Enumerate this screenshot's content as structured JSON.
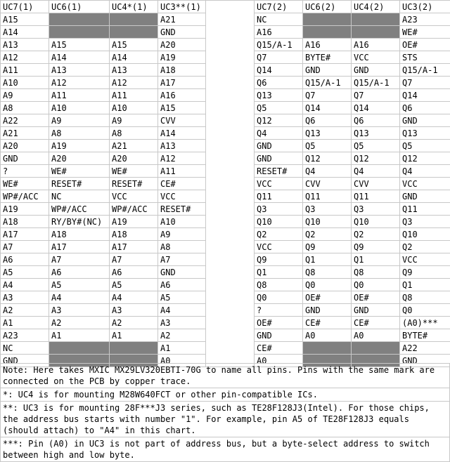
{
  "headers": [
    "UC7(1)",
    "UC6(1)",
    "UC4*(1)",
    "UC3**(1)",
    "",
    "UC7(2)",
    "UC6(2)",
    "UC4(2)",
    "UC3(2)"
  ],
  "rows": [
    [
      "A15",
      null,
      null,
      "A21",
      "",
      "NC",
      null,
      null,
      "A23"
    ],
    [
      "A14",
      null,
      null,
      "GND",
      "",
      "A16",
      null,
      null,
      "WE#"
    ],
    [
      "A13",
      "A15",
      "A15",
      "A20",
      "",
      "Q15/A-1",
      "A16",
      "A16",
      "OE#"
    ],
    [
      "A12",
      "A14",
      "A14",
      "A19",
      "",
      "Q7",
      "BYTE#",
      "VCC",
      "STS"
    ],
    [
      "A11",
      "A13",
      "A13",
      "A18",
      "",
      "Q14",
      "GND",
      "GND",
      "Q15/A-1"
    ],
    [
      "A10",
      "A12",
      "A12",
      "A17",
      "",
      "Q6",
      "Q15/A-1",
      "Q15/A-1",
      "Q7"
    ],
    [
      "A9",
      "A11",
      "A11",
      "A16",
      "",
      "Q13",
      "Q7",
      "Q7",
      "Q14"
    ],
    [
      "A8",
      "A10",
      "A10",
      "A15",
      "",
      "Q5",
      "Q14",
      "Q14",
      "Q6"
    ],
    [
      "A22",
      "A9",
      "A9",
      "CVV",
      "",
      "Q12",
      "Q6",
      "Q6",
      "GND"
    ],
    [
      "A21",
      "A8",
      "A8",
      "A14",
      "",
      "Q4",
      "Q13",
      "Q13",
      "Q13"
    ],
    [
      "A20",
      "A19",
      "A21",
      "A13",
      "",
      "GND",
      "Q5",
      "Q5",
      "Q5"
    ],
    [
      "GND",
      "A20",
      "A20",
      "A12",
      "",
      "GND",
      "Q12",
      "Q12",
      "Q12"
    ],
    [
      "?",
      "WE#",
      "WE#",
      "A11",
      "",
      "RESET#",
      "Q4",
      "Q4",
      "Q4"
    ],
    [
      "WE#",
      "RESET#",
      "RESET#",
      "CE#",
      "",
      "VCC",
      "CVV",
      "CVV",
      "VCC"
    ],
    [
      "WP#/ACC",
      "NC",
      "VCC",
      "VCC",
      "",
      "Q11",
      "Q11",
      "Q11",
      "GND"
    ],
    [
      "A19",
      "WP#/ACC",
      "WP#/ACC",
      "RESET#",
      "",
      "Q3",
      "Q3",
      "Q3",
      "Q11"
    ],
    [
      "A18",
      "RY/BY#(NC)",
      "A19",
      "A10",
      "",
      "Q10",
      "Q10",
      "Q10",
      "Q3"
    ],
    [
      "A17",
      "A18",
      "A18",
      "A9",
      "",
      "Q2",
      "Q2",
      "Q2",
      "Q10"
    ],
    [
      "A7",
      "A17",
      "A17",
      "A8",
      "",
      "VCC",
      "Q9",
      "Q9",
      "Q2"
    ],
    [
      "A6",
      "A7",
      "A7",
      "A7",
      "",
      "Q9",
      "Q1",
      "Q1",
      "VCC"
    ],
    [
      "A5",
      "A6",
      "A6",
      "GND",
      "",
      "Q1",
      "Q8",
      "Q8",
      "Q9"
    ],
    [
      "A4",
      "A5",
      "A5",
      "A6",
      "",
      "Q8",
      "Q0",
      "Q0",
      "Q1"
    ],
    [
      "A3",
      "A4",
      "A4",
      "A5",
      "",
      "Q0",
      "OE#",
      "OE#",
      "Q8"
    ],
    [
      "A2",
      "A3",
      "A3",
      "A4",
      "",
      "?",
      "GND",
      "GND",
      "Q0"
    ],
    [
      "A1",
      "A2",
      "A2",
      "A3",
      "",
      "OE#",
      "CE#",
      "CE#",
      "(A0)***"
    ],
    [
      "A23",
      "A1",
      "A1",
      "A2",
      "",
      "GND",
      "A0",
      "A0",
      "BYTE#"
    ],
    [
      "NC",
      null,
      null,
      "A1",
      "",
      "CE#",
      null,
      null,
      "A22"
    ],
    [
      "GND",
      null,
      null,
      "A0",
      "",
      "A0",
      null,
      null,
      "GND"
    ]
  ],
  "notes": [
    "Note: Here takes MXIC MX29LV320EBTI-70G to name all pins. Pins with the same mark are connected on the PCB by copper trace.",
    "*: UC4 is for mounting M28W640FCT or other pin-compatible ICs.",
    "**: UC3 is for mounting 28F***J3 series, such as TE28F128J3(Intel). For those chips, the address bus starts with number \"1\". For example, pin A5 of TE28F128J3 equals (should attach) to \"A4\" in this chart.",
    "***: Pin (A0) in UC3 is not part of address bus, but a byte-select address to switch between high and low byte."
  ],
  "colors": {
    "blocked_cell": "#808080",
    "grid_line": "#c8c8c8"
  }
}
